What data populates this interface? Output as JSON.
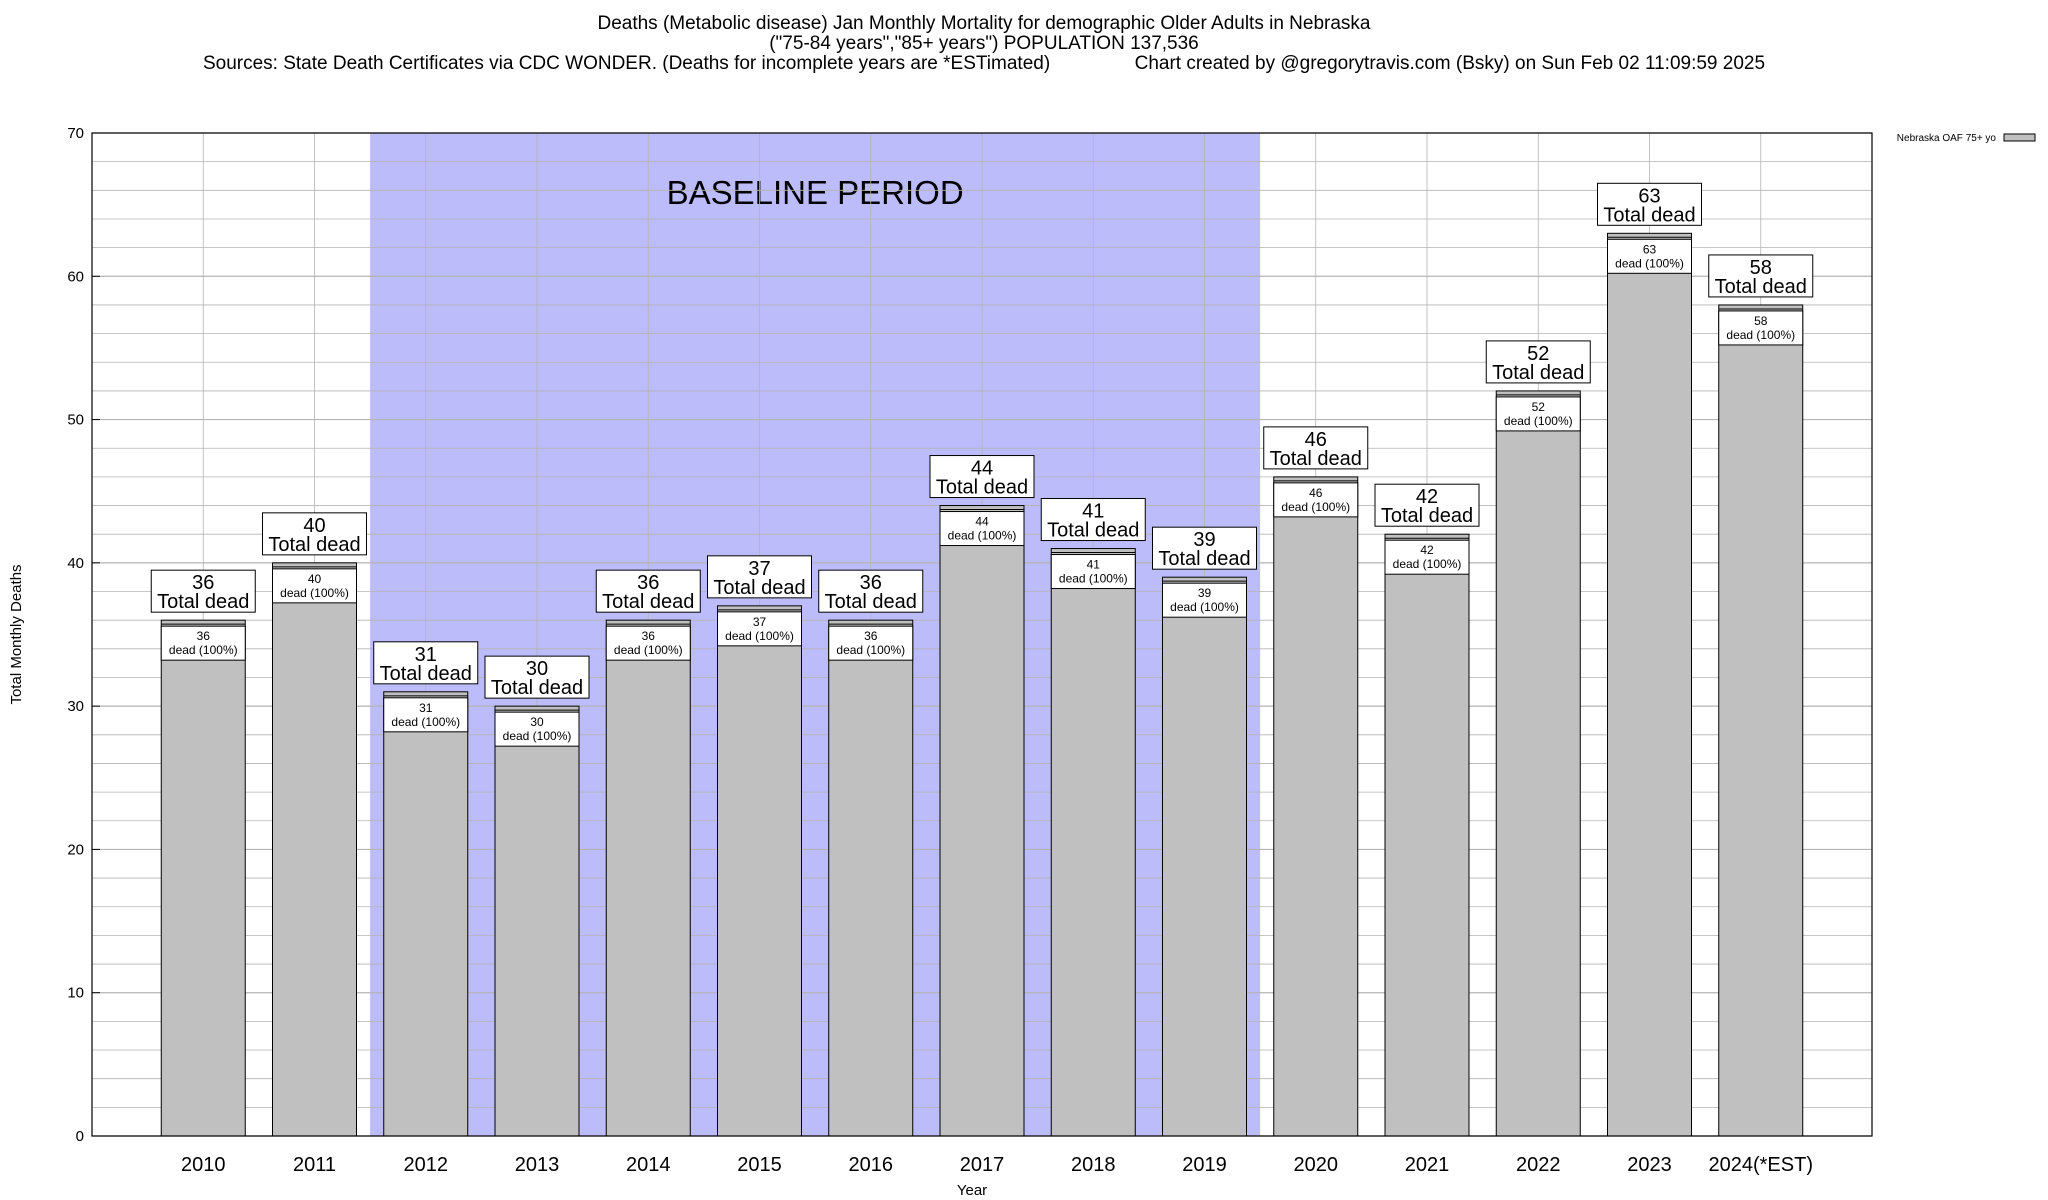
{
  "title": {
    "line1": "Deaths (Metabolic disease) Jan Monthly Mortality for demographic Older Adults in Nebraska",
    "line2": "(\"75-84 years\",\"85+ years\") POPULATION 137,536",
    "line3": "Sources: State Death Certificates via CDC WONDER. (Deaths for incomplete years are *ESTimated)                Chart created by @gregorytravis.com (Bsky) on Sun Feb 02 11:09:59 2025"
  },
  "colors": {
    "bar_fill": "#c0c0c0",
    "baseline_band": "#bcbcfb",
    "grid": "#b4b4b4"
  },
  "chart_data": {
    "type": "bar",
    "title": "Deaths (Metabolic disease) Jan Monthly Mortality for demographic Older Adults in Nebraska",
    "xlabel": "Year",
    "ylabel": "Total Monthly Deaths",
    "ylim": [
      0,
      70
    ],
    "yticks": [
      0,
      10,
      20,
      30,
      40,
      50,
      60,
      70
    ],
    "grid": true,
    "legend_position": "top-right",
    "categories": [
      "2010",
      "2011",
      "2012",
      "2013",
      "2014",
      "2015",
      "2016",
      "2017",
      "2018",
      "2019",
      "2020",
      "2021",
      "2022",
      "2023",
      "2024(*EST)"
    ],
    "series": [
      {
        "name": "Nebraska OAF 75+ yo",
        "values": [
          36,
          40,
          31,
          30,
          36,
          37,
          36,
          44,
          41,
          39,
          46,
          42,
          52,
          63,
          58
        ]
      }
    ],
    "top_label_suffix": "Total dead",
    "inner_label_suffix": "dead (100%)",
    "baseline_annotation": {
      "text": "BASELINE PERIOD",
      "from_category": "2012",
      "to_category": "2019"
    }
  }
}
